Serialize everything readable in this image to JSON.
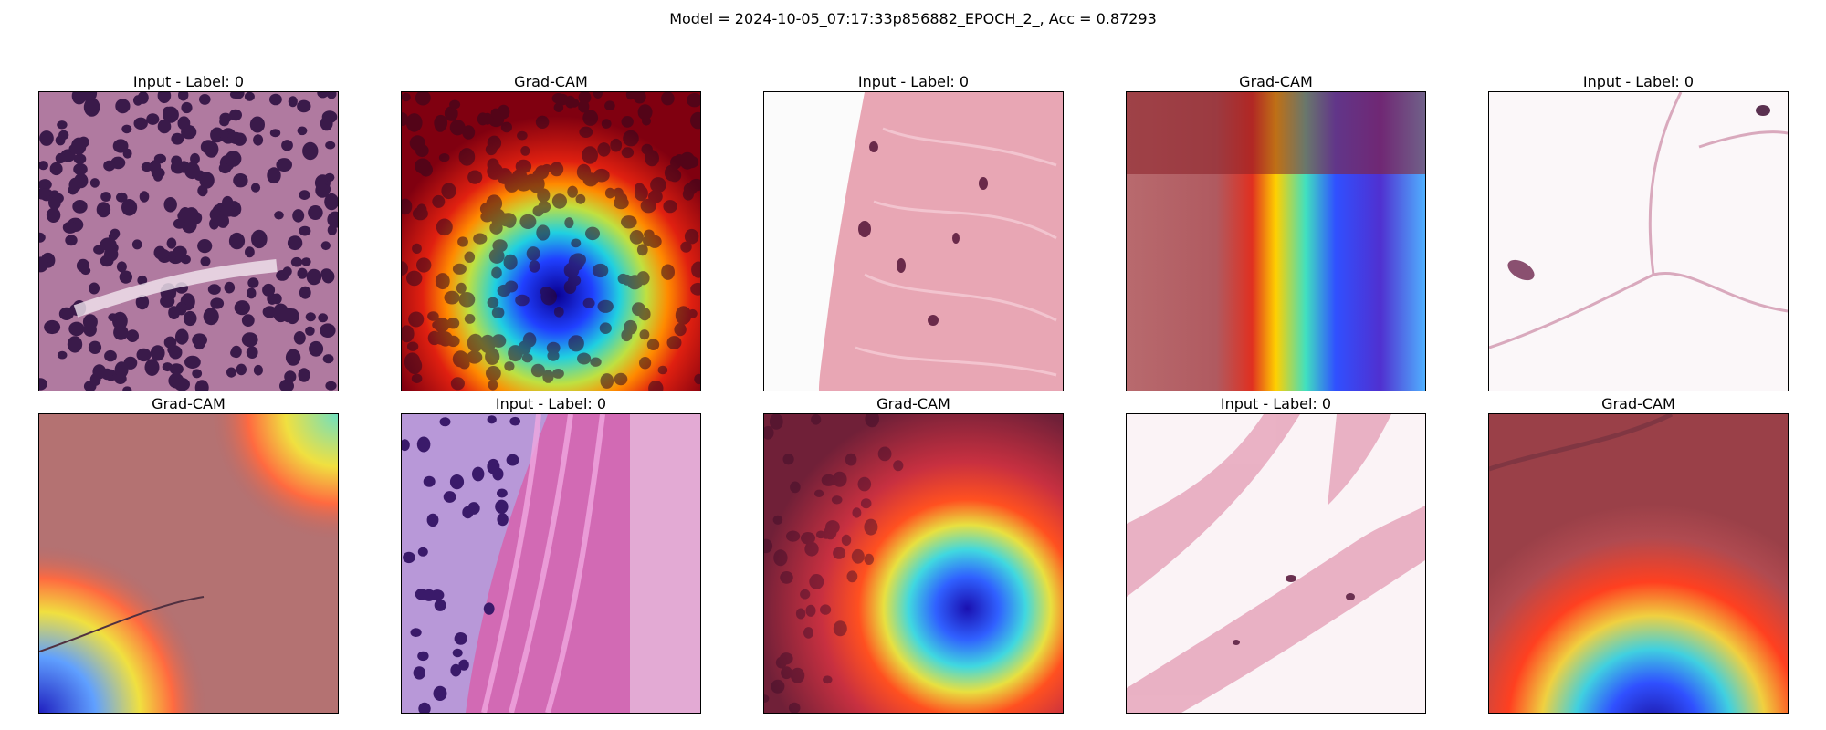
{
  "figure": {
    "suptitle": "Model = 2024-10-05_07:17:33p856882_EPOCH_2_, Acc = 0.87293"
  },
  "panels": [
    {
      "title": "Input - Label: 0",
      "kind": "input",
      "tissue": "dense purple nuclei"
    },
    {
      "title": "Grad-CAM",
      "kind": "gradcam",
      "tissue": "dense purple nuclei"
    },
    {
      "title": "Input - Label: 0",
      "kind": "input",
      "tissue": "pink stroma with white gap"
    },
    {
      "title": "Grad-CAM",
      "kind": "gradcam",
      "tissue": "pink stroma with white gap"
    },
    {
      "title": "Input - Label: 0",
      "kind": "input",
      "tissue": "adipose white cells"
    },
    {
      "title": "Grad-CAM",
      "kind": "gradcam",
      "tissue": "adipose white cells"
    },
    {
      "title": "Input - Label: 0",
      "kind": "input",
      "tissue": "lymphocytes and magenta fibers"
    },
    {
      "title": "Grad-CAM",
      "kind": "gradcam",
      "tissue": "lymphocytes and magenta fibers"
    },
    {
      "title": "Input - Label: 0",
      "kind": "input",
      "tissue": "pale pink fibrous tissue"
    },
    {
      "title": "Grad-CAM",
      "kind": "gradcam",
      "tissue": "pale pink fibrous tissue"
    }
  ],
  "colormap": [
    "#00007f",
    "#0000ff",
    "#00c8ff",
    "#7fff7f",
    "#ffd700",
    "#ff4000",
    "#7f0000"
  ]
}
